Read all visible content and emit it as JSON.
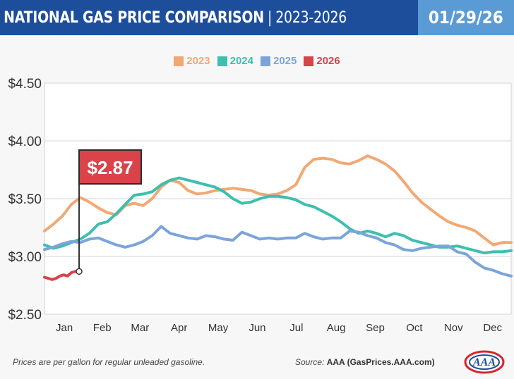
{
  "header": {
    "title_main": "NATIONAL GAS PRICE COMPARISON",
    "title_sep": "|",
    "title_years": "2023-2026",
    "date": "01/29/26"
  },
  "colors": {
    "2023": "#f2a874",
    "2024": "#3dbfae",
    "2025": "#7ba5d9",
    "2026": "#d9434a",
    "header_bg": "#1d4e9b",
    "date_bg": "#5a9bd5",
    "callout_bg": "#d9434a"
  },
  "callout": {
    "label": "$2.87",
    "value": 2.87,
    "date_index": 28
  },
  "footer": {
    "note": "Prices are per gallon for regular unleaded gasoline.",
    "source_prefix": "Source:",
    "source_name": "AAA (GasPrices.AAA.com)"
  },
  "logo": {
    "text": "AAA"
  },
  "chart_data": {
    "type": "line",
    "title": "NATIONAL GAS PRICE COMPARISON | 2023-2026",
    "xlabel": "",
    "ylabel": "",
    "x_unit": "day of year",
    "ylim": [
      2.5,
      4.5
    ],
    "yticks": [
      2.5,
      3.0,
      3.5,
      4.0,
      4.5
    ],
    "ytick_labels": [
      "$2.50",
      "$3.00",
      "$3.50",
      "$4.00",
      "$4.50"
    ],
    "months": [
      "Jan",
      "Feb",
      "Mar",
      "Apr",
      "May",
      "Jun",
      "Jul",
      "Aug",
      "Sep",
      "Oct",
      "Nov",
      "Dec"
    ],
    "grid": true,
    "legend": "top-center",
    "series": [
      {
        "name": "2023",
        "color": "#f2a874",
        "x": [
          1,
          8,
          15,
          22,
          29,
          36,
          43,
          50,
          57,
          64,
          71,
          78,
          85,
          92,
          99,
          106,
          113,
          120,
          127,
          134,
          141,
          148,
          155,
          162,
          169,
          176,
          183,
          190,
          197,
          204,
          211,
          218,
          225,
          232,
          239,
          246,
          253,
          260,
          267,
          274,
          281,
          288,
          295,
          302,
          309,
          316,
          323,
          330,
          337,
          344,
          351,
          358,
          365
        ],
        "y": [
          3.22,
          3.28,
          3.35,
          3.45,
          3.51,
          3.47,
          3.42,
          3.38,
          3.36,
          3.44,
          3.46,
          3.44,
          3.5,
          3.6,
          3.66,
          3.64,
          3.57,
          3.54,
          3.55,
          3.57,
          3.58,
          3.59,
          3.58,
          3.57,
          3.54,
          3.53,
          3.54,
          3.57,
          3.62,
          3.77,
          3.84,
          3.85,
          3.84,
          3.81,
          3.8,
          3.83,
          3.87,
          3.84,
          3.8,
          3.74,
          3.65,
          3.55,
          3.47,
          3.41,
          3.35,
          3.3,
          3.27,
          3.25,
          3.22,
          3.16,
          3.1,
          3.12,
          3.12
        ]
      },
      {
        "name": "2024",
        "color": "#3dbfae",
        "x": [
          1,
          8,
          15,
          22,
          29,
          36,
          43,
          50,
          57,
          64,
          71,
          78,
          85,
          92,
          99,
          106,
          113,
          120,
          127,
          134,
          141,
          148,
          155,
          162,
          169,
          176,
          183,
          190,
          197,
          204,
          211,
          218,
          225,
          232,
          239,
          246,
          253,
          260,
          267,
          274,
          281,
          288,
          295,
          302,
          309,
          316,
          323,
          330,
          337,
          344,
          351,
          358,
          365
        ],
        "y": [
          3.1,
          3.07,
          3.09,
          3.12,
          3.15,
          3.2,
          3.28,
          3.3,
          3.37,
          3.45,
          3.53,
          3.54,
          3.56,
          3.62,
          3.66,
          3.68,
          3.66,
          3.64,
          3.62,
          3.6,
          3.56,
          3.5,
          3.46,
          3.47,
          3.5,
          3.52,
          3.52,
          3.51,
          3.49,
          3.45,
          3.43,
          3.39,
          3.35,
          3.3,
          3.24,
          3.2,
          3.22,
          3.2,
          3.17,
          3.2,
          3.18,
          3.14,
          3.12,
          3.1,
          3.08,
          3.08,
          3.09,
          3.07,
          3.05,
          3.03,
          3.04,
          3.04,
          3.05
        ]
      },
      {
        "name": "2025",
        "color": "#7ba5d9",
        "x": [
          1,
          8,
          15,
          22,
          29,
          36,
          43,
          50,
          57,
          64,
          71,
          78,
          85,
          92,
          99,
          106,
          113,
          120,
          127,
          134,
          141,
          148,
          155,
          162,
          169,
          176,
          183,
          190,
          197,
          204,
          211,
          218,
          225,
          232,
          239,
          246,
          253,
          260,
          267,
          274,
          281,
          288,
          295,
          302,
          309,
          316,
          323,
          330,
          337,
          344,
          351,
          358,
          365
        ],
        "y": [
          3.06,
          3.08,
          3.11,
          3.13,
          3.12,
          3.15,
          3.16,
          3.13,
          3.1,
          3.08,
          3.1,
          3.13,
          3.18,
          3.26,
          3.2,
          3.18,
          3.16,
          3.15,
          3.18,
          3.17,
          3.15,
          3.14,
          3.21,
          3.18,
          3.15,
          3.16,
          3.15,
          3.16,
          3.16,
          3.2,
          3.17,
          3.15,
          3.16,
          3.16,
          3.22,
          3.21,
          3.18,
          3.16,
          3.12,
          3.1,
          3.06,
          3.05,
          3.07,
          3.08,
          3.09,
          3.09,
          3.04,
          3.02,
          2.95,
          2.9,
          2.88,
          2.85,
          2.83
        ]
      },
      {
        "name": "2026",
        "color": "#d9434a",
        "x": [
          1,
          4,
          7,
          10,
          13,
          16,
          19,
          22,
          25,
          28
        ],
        "y": [
          2.82,
          2.81,
          2.8,
          2.81,
          2.83,
          2.84,
          2.83,
          2.86,
          2.87,
          2.87
        ]
      }
    ]
  }
}
